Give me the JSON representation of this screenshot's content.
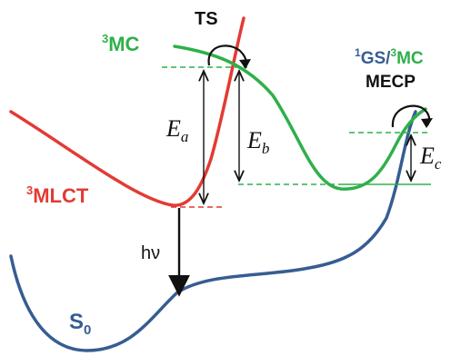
{
  "colors": {
    "mlct": "#e23b34",
    "mc": "#2fb04a",
    "ground": "#365d92",
    "ink": "#111111"
  },
  "labels": {
    "mc": {
      "sup": "3",
      "main": "MC"
    },
    "mlct": {
      "sup": "3",
      "main": "MLCT"
    },
    "ts": "TS",
    "s0": {
      "main": "S",
      "sub": "0"
    },
    "mecp_top": {
      "sup1": "1",
      "part1": "GS/",
      "sup2": "3",
      "part2": "MC"
    },
    "mecp": "MECP",
    "ea": {
      "main": "E",
      "sub": "a"
    },
    "eb": {
      "main": "E",
      "sub": "b"
    },
    "ec": {
      "main": "E",
      "sub": "c"
    },
    "hv": "hν"
  }
}
